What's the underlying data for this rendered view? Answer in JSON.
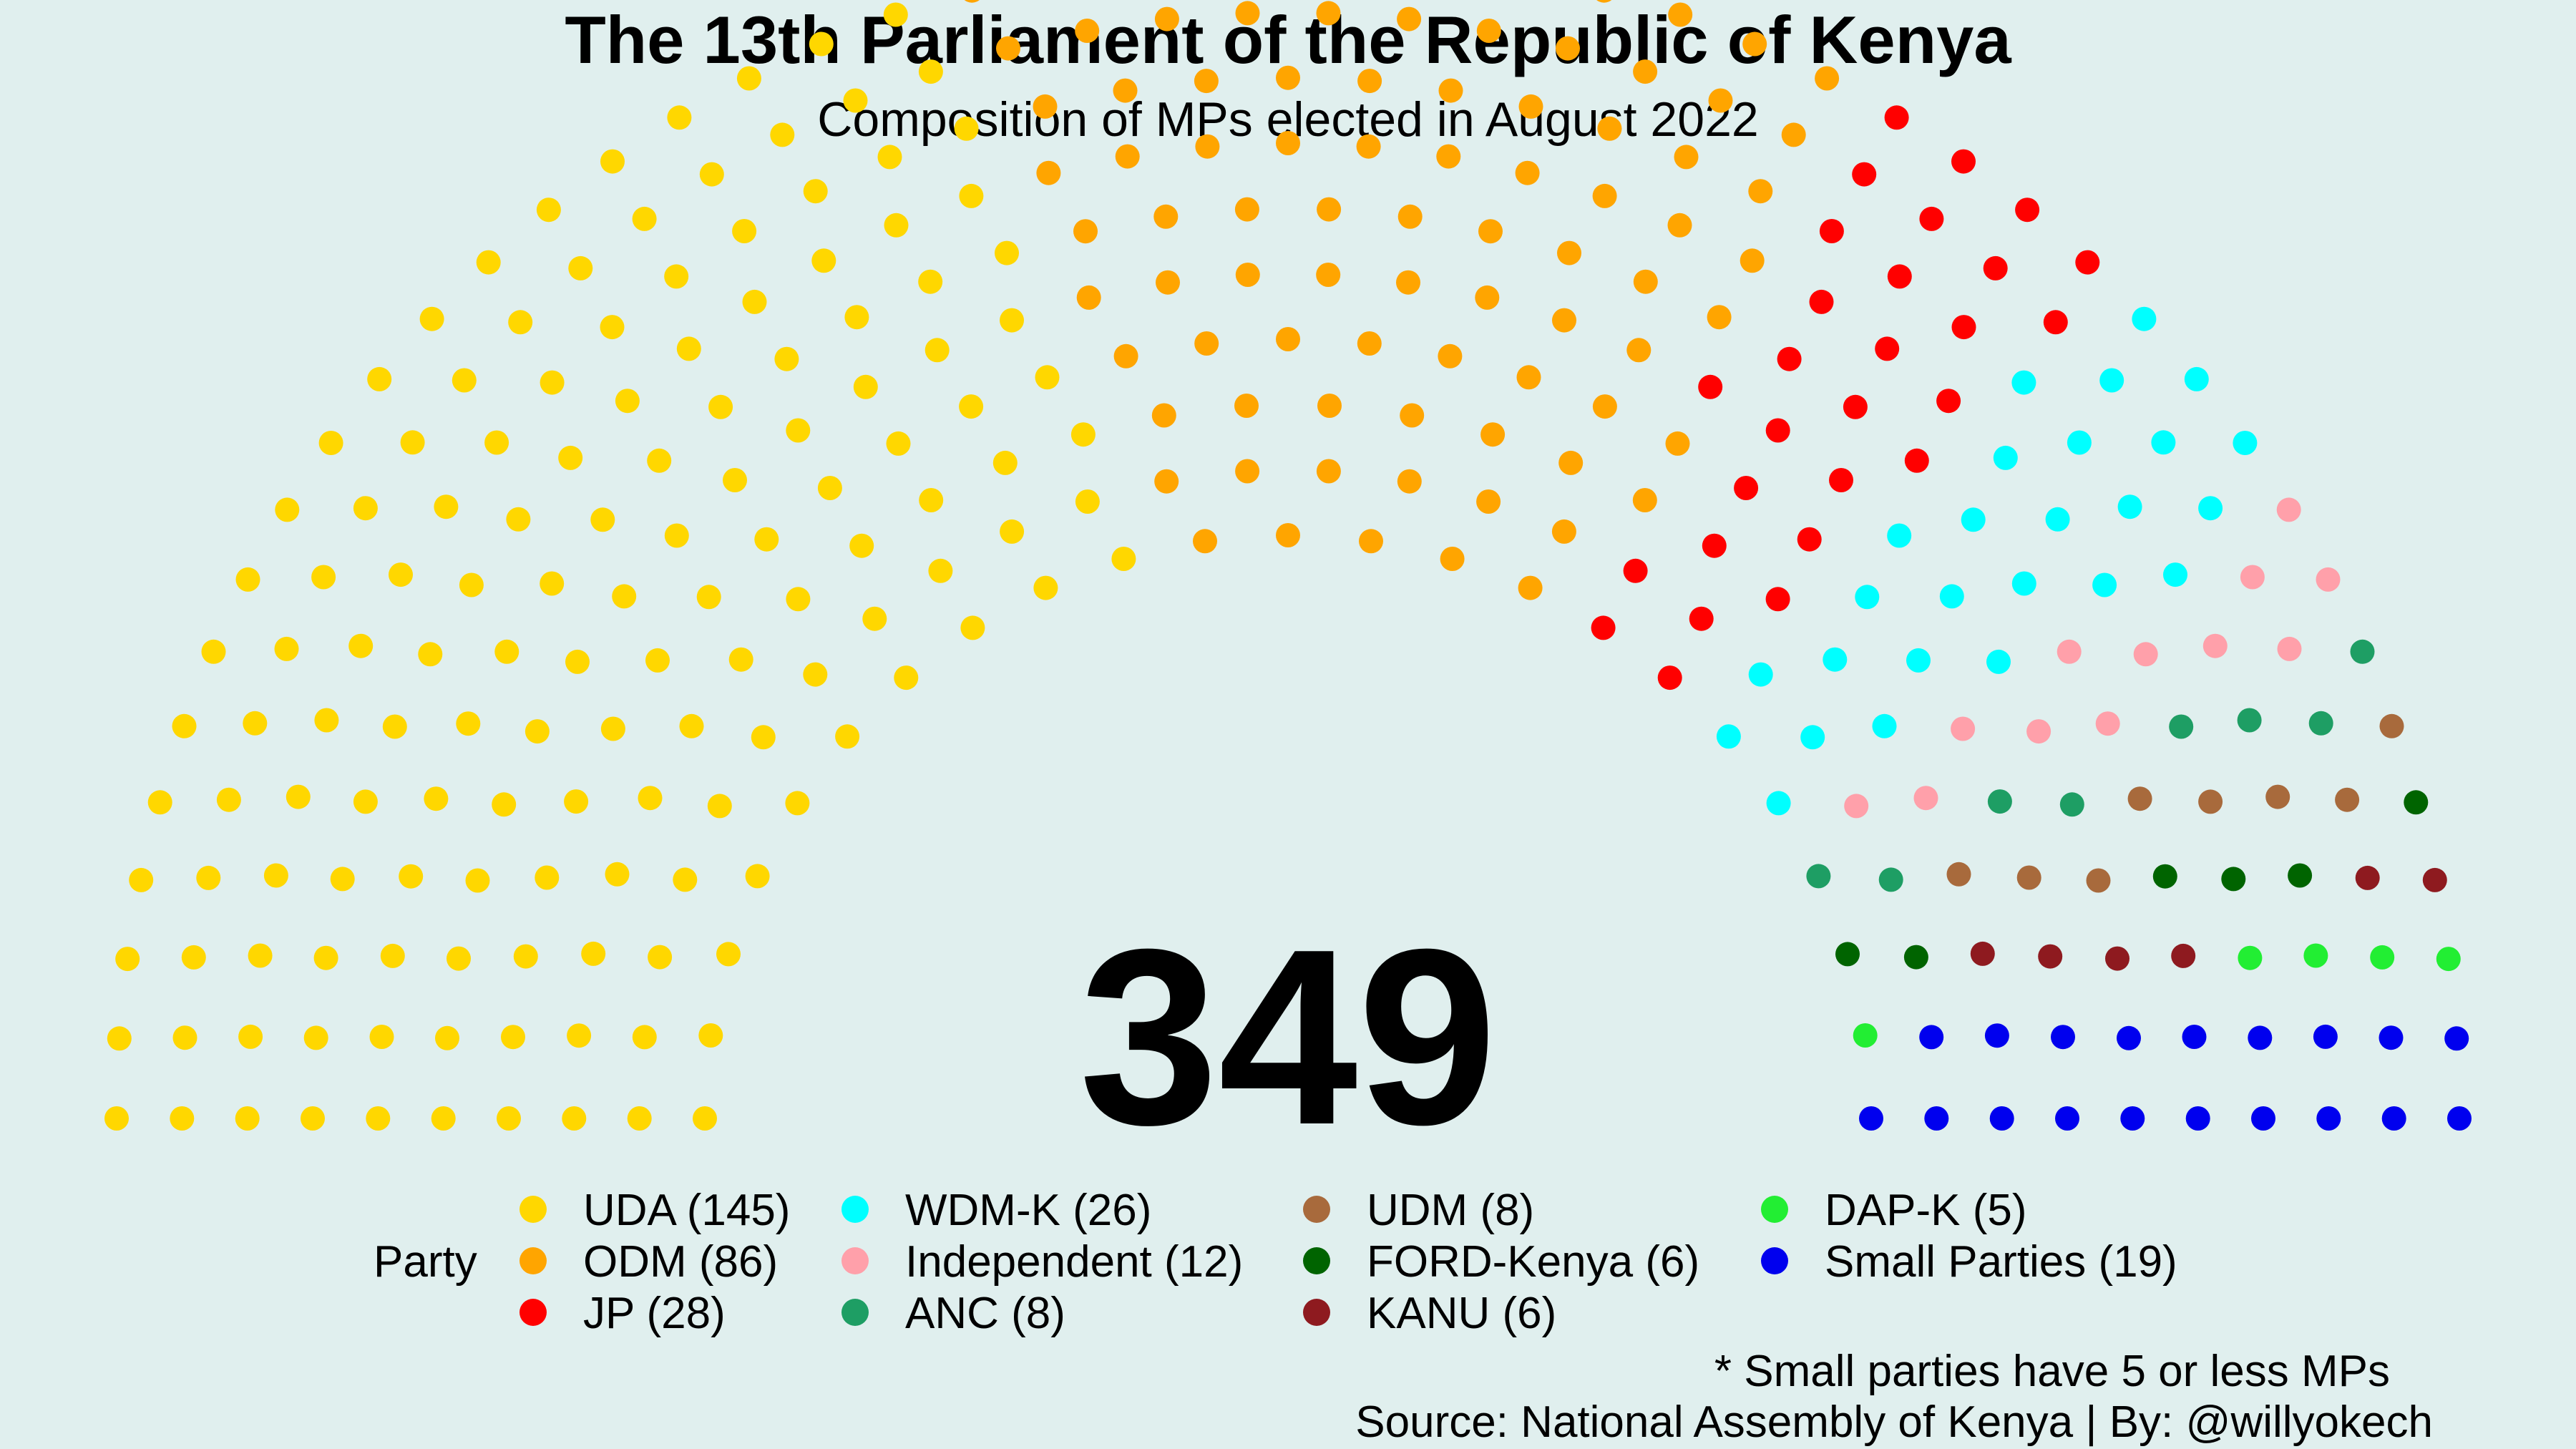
{
  "chart_data": {
    "type": "parliament",
    "title": "The 13th Parliament of the Republic of Kenya",
    "subtitle": "Composition of MPs elected in August 2022",
    "total": 349,
    "legend_title": "Party",
    "series": [
      {
        "name": "UDA (145)",
        "party": "UDA",
        "seats": 145,
        "color": "#FFD700"
      },
      {
        "name": "ODM (86)",
        "party": "ODM",
        "seats": 86,
        "color": "#FFA500"
      },
      {
        "name": "JP (28)",
        "party": "JP",
        "seats": 28,
        "color": "#FF0000"
      },
      {
        "name": "WDM-K (26)",
        "party": "WDM-K",
        "seats": 26,
        "color": "#00FFFF"
      },
      {
        "name": "Independent (12)",
        "party": "Independent",
        "seats": 12,
        "color": "#FFA0AA"
      },
      {
        "name": "ANC (8)",
        "party": "ANC",
        "seats": 8,
        "color": "#1E9E64"
      },
      {
        "name": "UDM (8)",
        "party": "UDM",
        "seats": 8,
        "color": "#A86A3C"
      },
      {
        "name": "FORD-Kenya (6)",
        "party": "FORD-Kenya",
        "seats": 6,
        "color": "#006400"
      },
      {
        "name": "KANU (6)",
        "party": "KANU",
        "seats": 6,
        "color": "#8E1A1F"
      },
      {
        "name": "DAP-K (5)",
        "party": "DAP-K",
        "seats": 5,
        "color": "#22EE33"
      },
      {
        "name": "Small Parties (19)",
        "party": "Small Parties",
        "seats": 19,
        "color": "#0000EE"
      }
    ],
    "legend_placement": "bottom",
    "caption_note": "* Small parties have 5 or less MPs",
    "caption_source": "Source: National Assembly of Kenya | By: @willyokech"
  }
}
